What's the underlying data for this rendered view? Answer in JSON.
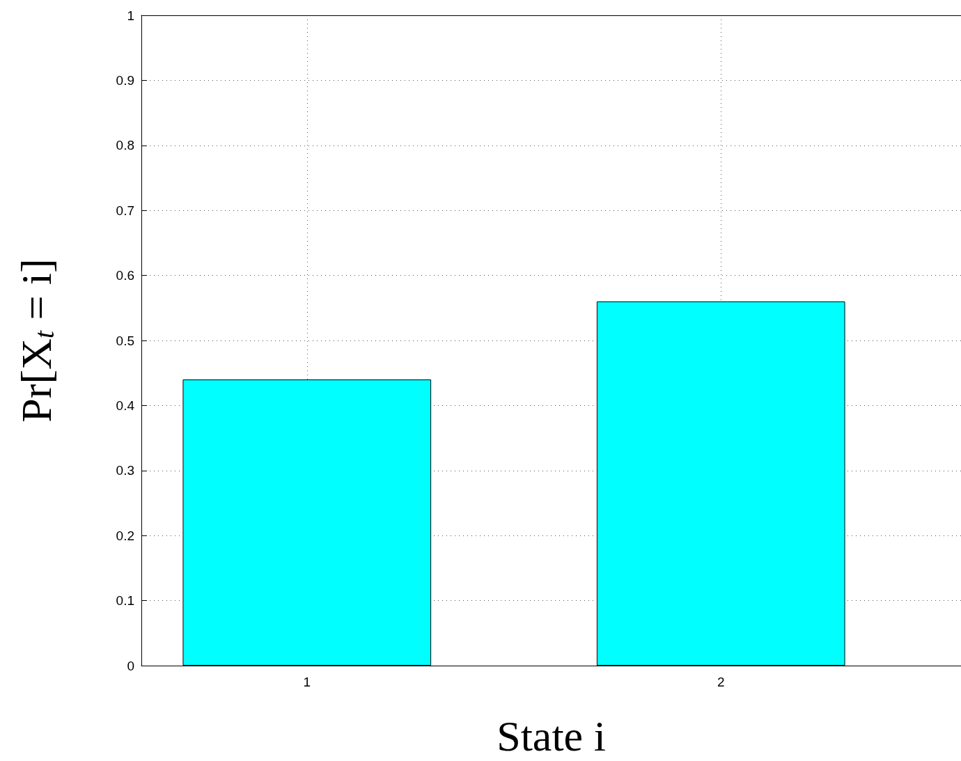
{
  "chart_data": {
    "type": "bar",
    "xlabel": "State i",
    "ylabel": "Pr[X$_{t}$ = i]",
    "x": [
      1,
      2
    ],
    "values": [
      0.44,
      0.56
    ],
    "color": "#00ffff",
    "xlim": [
      0.6,
      2.58
    ],
    "xticks": [
      1,
      2
    ],
    "ylim": [
      0,
      1
    ],
    "yticks": [
      0,
      0.1,
      0.2,
      0.3,
      0.4,
      0.5,
      0.6,
      0.7,
      0.8,
      0.9,
      1
    ],
    "grid": true
  }
}
